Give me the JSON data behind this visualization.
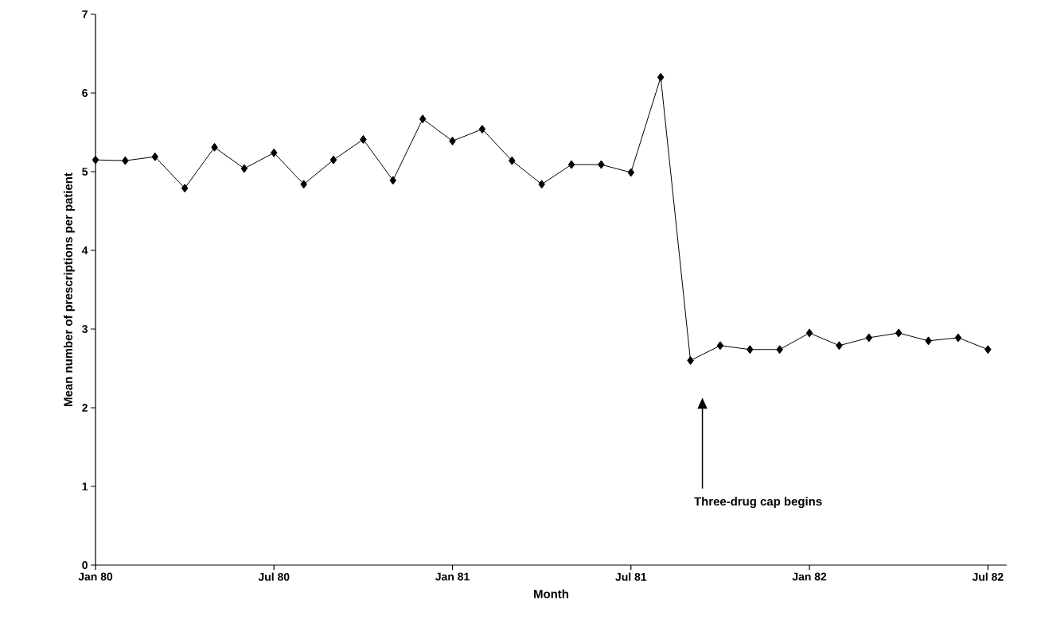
{
  "chart_data": {
    "type": "line",
    "xlabel": "Month",
    "ylabel": "Mean number of prescriptions per patient",
    "x": [
      "1980-01",
      "1980-02",
      "1980-03",
      "1980-04",
      "1980-05",
      "1980-06",
      "1980-07",
      "1980-08",
      "1980-09",
      "1980-10",
      "1980-11",
      "1980-12",
      "1981-01",
      "1981-02",
      "1981-03",
      "1981-04",
      "1981-05",
      "1981-06",
      "1981-07",
      "1981-08",
      "1981-09",
      "1981-10",
      "1981-11",
      "1981-12",
      "1982-01",
      "1982-02",
      "1982-03",
      "1982-04",
      "1982-05",
      "1982-06",
      "1982-07"
    ],
    "series": [
      {
        "color": "#000000",
        "values": [
          5.15,
          5.14,
          5.19,
          4.79,
          5.31,
          5.04,
          5.24,
          4.84,
          5.15,
          5.41,
          4.89,
          5.67,
          5.39,
          5.54,
          5.14,
          4.84,
          5.09,
          5.09,
          4.99,
          6.2,
          2.6,
          2.79,
          2.74,
          2.74,
          2.95,
          2.79,
          2.89,
          2.95,
          2.85,
          2.89,
          2.74
        ]
      }
    ],
    "marker": "diamond",
    "line_style": "solid",
    "grid": false,
    "xlim": [
      "1980-01",
      "1982-07-20"
    ],
    "xticks": [
      {
        "value": "1980-01",
        "label": "Jan 80"
      },
      {
        "value": "1980-07",
        "label": "Jul 80"
      },
      {
        "value": "1981-01",
        "label": "Jan 81"
      },
      {
        "value": "1981-07",
        "label": "Jul 81"
      },
      {
        "value": "1982-01",
        "label": "Jan 82"
      },
      {
        "value": "1982-07",
        "label": "Jul 82"
      }
    ],
    "ylim": [
      0,
      7
    ],
    "yticks": [
      0,
      1,
      2,
      3,
      4,
      5,
      6,
      7
    ],
    "annotations": [
      "Three-drug cap begins"
    ]
  }
}
